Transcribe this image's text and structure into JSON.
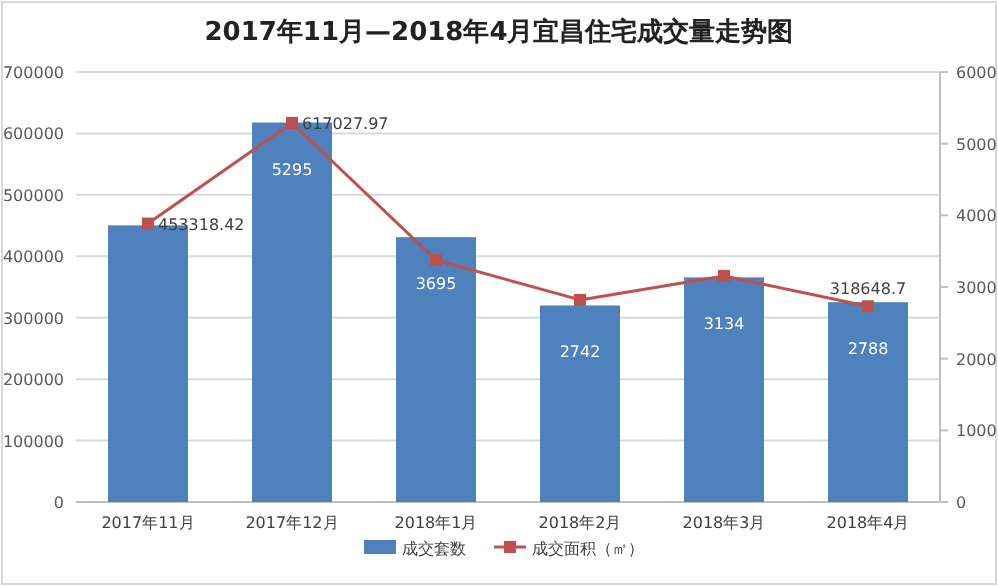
{
  "chart_data": {
    "type": "bar",
    "title": "2017年11月—2018年4月宜昌住宅成交量走势图",
    "categories": [
      "2017年11月",
      "2017年12月",
      "2018年1月",
      "2018年2月",
      "2018年3月",
      "2018年4月"
    ],
    "series": [
      {
        "name": "成交套数",
        "axis": "y2",
        "color": "#4f81bd",
        "values": [
          3860,
          5295,
          3695,
          2742,
          3134,
          2788
        ],
        "value_labels": [
          null,
          "5295",
          "3695",
          "2742",
          "3134",
          "2788"
        ]
      },
      {
        "name": "成交面积（㎡）",
        "type": "line",
        "color": "#c0504d",
        "marker": "square",
        "values": [
          453318.42,
          617027.97,
          394000,
          329000,
          368000,
          318648.7
        ],
        "value_labels": [
          "453318.42",
          "617027.97",
          null,
          null,
          null,
          "318648.7"
        ]
      }
    ],
    "ylim": [
      0,
      700000
    ],
    "yticks": [
      0,
      100000,
      200000,
      300000,
      400000,
      500000,
      600000,
      700000
    ],
    "y2lim": [
      0,
      6000
    ],
    "y2ticks": [
      0,
      1000,
      2000,
      3000,
      4000,
      5000,
      6000
    ],
    "grid": "y",
    "legend": "bottom"
  }
}
